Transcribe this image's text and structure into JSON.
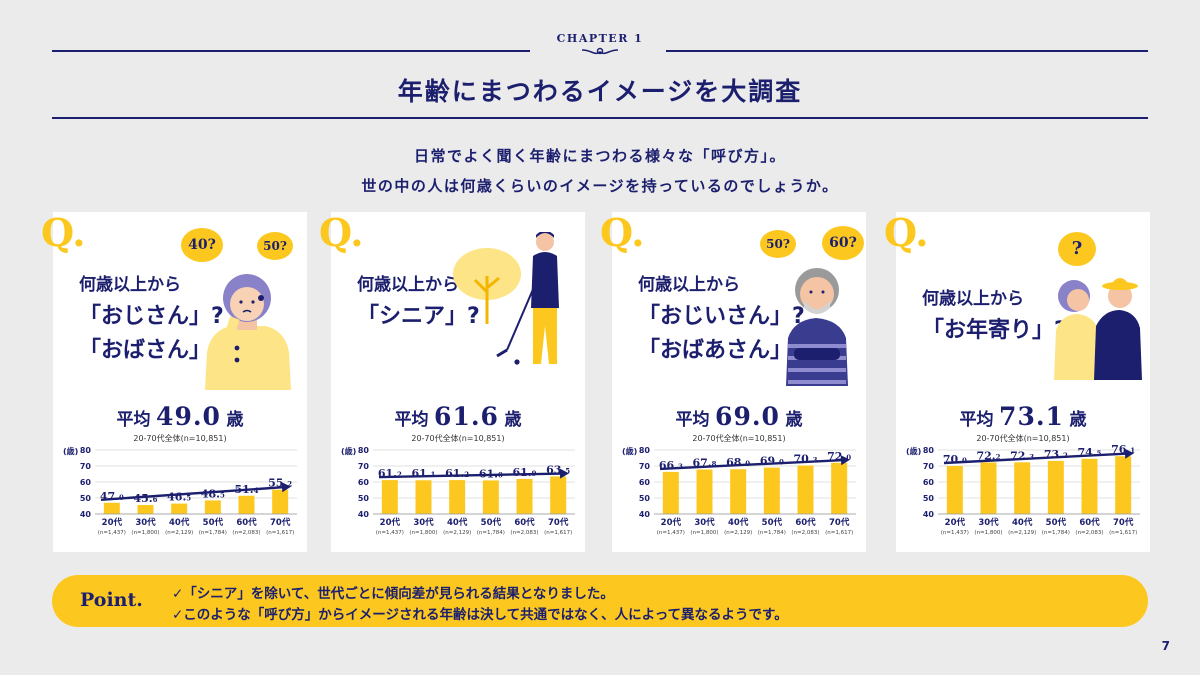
{
  "header": {
    "chapter": "CHAPTER 1",
    "title": "年齢にまつわるイメージを大調査"
  },
  "intro": {
    "line1": "日常でよく聞く年齢にまつわる様々な「呼び方」。",
    "line2": "世の中の人は何歳くらいのイメージを持っているのでしょうか。"
  },
  "q_mark": "Q.",
  "cards": [
    {
      "q_small": "何歳以上から",
      "q_big1": "「おじさん」?",
      "q_big2": "「おばさん」?",
      "bubbles": [
        "40?",
        "50?"
      ],
      "avg_label": "平均",
      "avg_value": "49.0",
      "avg_unit": "歳",
      "base": "20-70代全体(n=10,851)"
    },
    {
      "q_small": "何歳以上から",
      "q_big1": "「シニア」?",
      "q_big2": "",
      "bubbles": [],
      "avg_label": "平均",
      "avg_value": "61.6",
      "avg_unit": "歳",
      "base": "20-70代全体(n=10,851)"
    },
    {
      "q_small": "何歳以上から",
      "q_big1": "「おじいさん」?",
      "q_big2": "「おばあさん」?",
      "bubbles": [
        "50?",
        "60?"
      ],
      "avg_label": "平均",
      "avg_value": "69.0",
      "avg_unit": "歳",
      "base": "20-70代全体(n=10,851)"
    },
    {
      "q_small": "何歳以上から",
      "q_big1": "「お年寄り」?",
      "q_big2": "",
      "bubbles": [
        "?"
      ],
      "avg_label": "平均",
      "avg_value": "73.1",
      "avg_unit": "歳",
      "base": "20-70代全体(n=10,851)"
    }
  ],
  "chart_data": [
    {
      "type": "bar",
      "ylabel": "(歳)",
      "ylim": [
        40,
        80
      ],
      "yticks": [
        40,
        50,
        60,
        70,
        80
      ],
      "categories": [
        "20代",
        "30代",
        "40代",
        "50代",
        "60代",
        "70代"
      ],
      "n_labels": [
        "(n=1,437)",
        "(n=1,800)",
        "(n=2,129)",
        "(n=1,784)",
        "(n=2,083)",
        "(n=1,617)"
      ],
      "value_labels": [
        [
          "47.",
          "0"
        ],
        [
          "45.",
          "6"
        ],
        [
          "46.",
          "5"
        ],
        [
          "48.",
          "5"
        ],
        [
          "51.",
          "4"
        ],
        [
          "55.",
          "2"
        ]
      ],
      "values": [
        47.0,
        45.6,
        46.5,
        48.5,
        51.4,
        55.2
      ],
      "colors": {
        "bar": "#fcc81f",
        "arrow": "#1c1f6e"
      }
    },
    {
      "type": "bar",
      "ylabel": "(歳)",
      "ylim": [
        40,
        80
      ],
      "yticks": [
        40,
        50,
        60,
        70,
        80
      ],
      "categories": [
        "20代",
        "30代",
        "40代",
        "50代",
        "60代",
        "70代"
      ],
      "n_labels": [
        "(n=1,437)",
        "(n=1,800)",
        "(n=2,129)",
        "(n=1,784)",
        "(n=2,083)",
        "(n=1,617)"
      ],
      "value_labels": [
        [
          "61.",
          "2"
        ],
        [
          "61.",
          "1"
        ],
        [
          "61.",
          "2"
        ],
        [
          "61.",
          "0"
        ],
        [
          "61.",
          "9"
        ],
        [
          "63.",
          "5"
        ]
      ],
      "values": [
        61.2,
        61.1,
        61.2,
        61.0,
        61.9,
        63.5
      ],
      "colors": {
        "bar": "#fcc81f",
        "arrow": "#1c1f6e"
      }
    },
    {
      "type": "bar",
      "ylabel": "(歳)",
      "ylim": [
        40,
        80
      ],
      "yticks": [
        40,
        50,
        60,
        70,
        80
      ],
      "categories": [
        "20代",
        "30代",
        "40代",
        "50代",
        "60代",
        "70代"
      ],
      "n_labels": [
        "(n=1,437)",
        "(n=1,800)",
        "(n=2,129)",
        "(n=1,784)",
        "(n=2,083)",
        "(n=1,617)"
      ],
      "value_labels": [
        [
          "66.",
          "3"
        ],
        [
          "67.",
          "8"
        ],
        [
          "68.",
          "0"
        ],
        [
          "69.",
          "0"
        ],
        [
          "70.",
          "3"
        ],
        [
          "72.",
          "0"
        ]
      ],
      "values": [
        66.3,
        67.8,
        68.0,
        69.0,
        70.3,
        72.0
      ],
      "colors": {
        "bar": "#fcc81f",
        "arrow": "#1c1f6e"
      }
    },
    {
      "type": "bar",
      "ylabel": "(歳)",
      "ylim": [
        40,
        80
      ],
      "yticks": [
        40,
        50,
        60,
        70,
        80
      ],
      "categories": [
        "20代",
        "30代",
        "40代",
        "50代",
        "60代",
        "70代"
      ],
      "n_labels": [
        "(n=1,437)",
        "(n=1,800)",
        "(n=2,129)",
        "(n=1,784)",
        "(n=2,083)",
        "(n=1,617)"
      ],
      "value_labels": [
        [
          "70.",
          "0"
        ],
        [
          "72.",
          "2"
        ],
        [
          "72.",
          "3"
        ],
        [
          "73.",
          "2"
        ],
        [
          "74.",
          "5"
        ],
        [
          "76.",
          "1"
        ]
      ],
      "values": [
        70.0,
        72.2,
        72.3,
        73.2,
        74.5,
        76.1
      ],
      "colors": {
        "bar": "#fcc81f",
        "arrow": "#1c1f6e"
      }
    }
  ],
  "point": {
    "label": "Point.",
    "line1": "✓「シニア」を除いて、世代ごとに傾向差が見られる結果となりました。",
    "line2": "✓このような「呼び方」からイメージされる年齢は決して共通ではなく、人によって異なるようです。"
  },
  "page_number": "7"
}
